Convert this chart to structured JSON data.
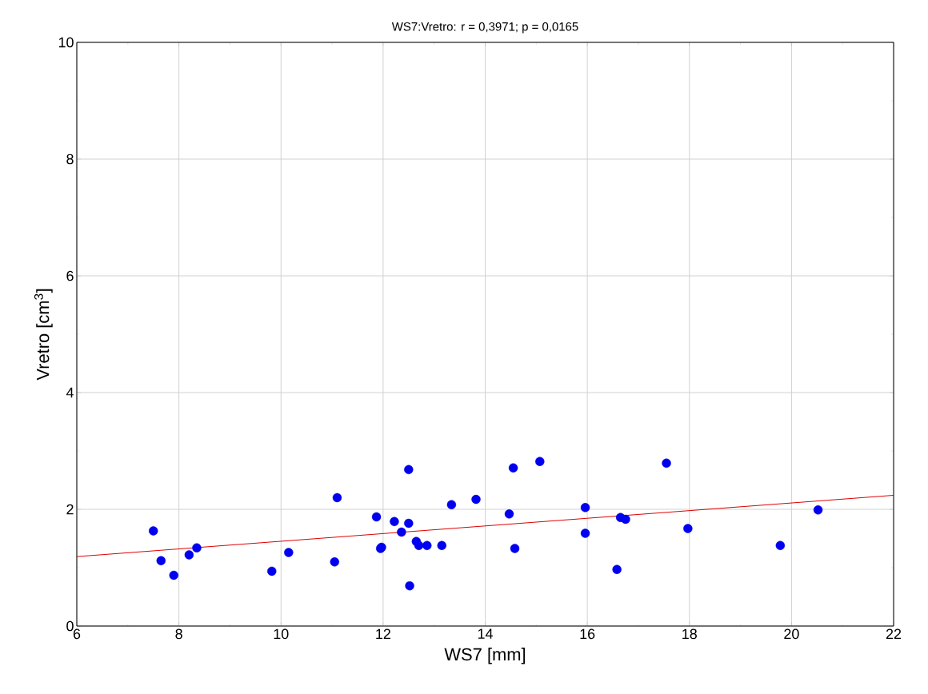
{
  "chart_data": {
    "type": "scatter",
    "title": "WS7:Vretro:   r = 0,3971; p = 0,0165",
    "xlabel": "WS7 [mm]",
    "ylabel": "Vretro [cm$^{3}$]",
    "xlim": [
      6,
      22
    ],
    "ylim": [
      0,
      10
    ],
    "xticks": [
      6,
      8,
      10,
      12,
      14,
      16,
      18,
      20,
      22
    ],
    "yticks": [
      0,
      2,
      4,
      6,
      8,
      10
    ],
    "grid": true,
    "series": [
      {
        "marker": "circle",
        "color": "#0000ee",
        "x": [
          7.5,
          7.65,
          7.9,
          8.2,
          8.35,
          9.82,
          10.15,
          11.05,
          11.1,
          11.87,
          11.95,
          11.97,
          12.22,
          12.36,
          12.5,
          12.5,
          12.52,
          12.65,
          12.7,
          12.86,
          13.15,
          13.34,
          13.82,
          14.47,
          14.55,
          14.58,
          15.07,
          15.96,
          15.96,
          16.58,
          16.65,
          16.75,
          17.55,
          17.97,
          19.78,
          20.52
        ],
        "values": [
          1.63,
          1.12,
          0.87,
          1.22,
          1.34,
          0.94,
          1.26,
          1.1,
          2.2,
          1.87,
          1.33,
          1.35,
          1.79,
          1.61,
          2.68,
          1.76,
          0.69,
          1.45,
          1.38,
          1.38,
          1.38,
          2.08,
          2.17,
          1.92,
          2.71,
          1.33,
          2.82,
          2.03,
          1.59,
          0.97,
          1.86,
          1.83,
          2.79,
          1.67,
          1.38,
          1.99
        ]
      },
      {
        "type": "line",
        "marker": "none",
        "color": "#dd0000",
        "x": [
          6,
          22
        ],
        "values": [
          1.19,
          2.24
        ]
      }
    ]
  }
}
